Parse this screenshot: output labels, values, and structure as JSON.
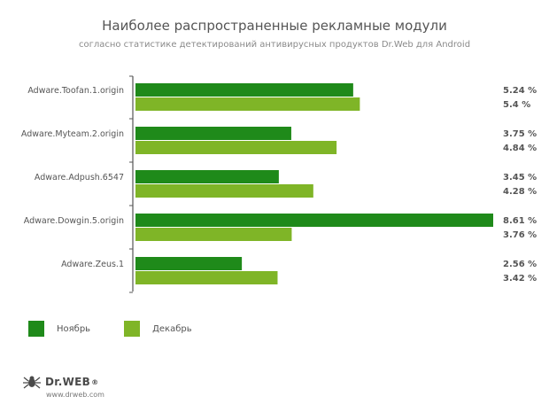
{
  "header": {
    "title": "Наиболее распространенные рекламные модули",
    "subtitle": "согласно статистике детектирований антивирусных продуктов Dr.Web для Android"
  },
  "chart_data": {
    "type": "bar",
    "orientation": "horizontal",
    "title": "Наиболее распространенные рекламные модули",
    "subtitle": "согласно статистике детектирований антивирусных продуктов Dr.Web для Android",
    "categories": [
      "Adware.Toofan.1.origin",
      "Adware.Myteam.2.origin",
      "Adware.Adpush.6547",
      "Adware.Dowgin.5.origin",
      "Adware.Zeus.1"
    ],
    "series": [
      {
        "name": "Ноябрь",
        "values": [
          5.24,
          3.75,
          3.45,
          8.61,
          2.56
        ],
        "labels": [
          "5.24 %",
          "3.75 %",
          "3.45 %",
          "8.61 %",
          "2.56 %"
        ],
        "color": "#1f8a1a"
      },
      {
        "name": "Декабрь",
        "values": [
          5.4,
          4.84,
          4.28,
          3.76,
          3.42
        ],
        "labels": [
          "5.4 %",
          "4.84 %",
          "4.28 %",
          "3.76 %",
          "3.42 %"
        ],
        "color": "#7fb527"
      }
    ],
    "xlim": [
      0,
      8.61
    ],
    "legend_position": "bottom-left",
    "grid": false
  },
  "logo": {
    "brand": "Dr.WEB",
    "url": "www.drweb.com",
    "icon": "spider-icon"
  }
}
